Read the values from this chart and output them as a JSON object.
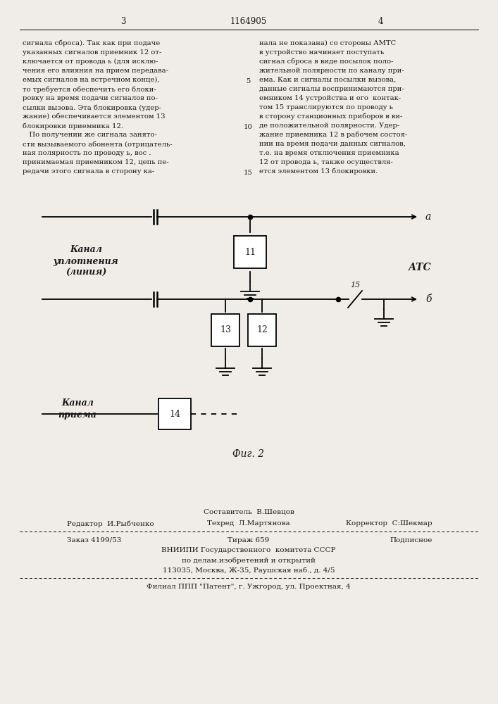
{
  "bg_color": "#f0ede8",
  "text_color": "#1a1a1a",
  "page_header": {
    "left_num": "3",
    "center_num": "1164905",
    "right_num": "4"
  },
  "col_left_text": [
    "сигнала сброса). Так как при подаче",
    "указанных сигналов приемник 12 от-",
    "ключается от провода ь (для исклю-",
    "чения его влияния на прием передава-",
    "емых сигналов на встречном конце),",
    "то требуется обеспечить его блоки-",
    "ровку на время подачи сигналов по-",
    "сылки вызова. Эта блокировка (удер-",
    "жание) обеспечивается элементом 13",
    "блокировки приемника 12.",
    "   По получении же сигнала занято-",
    "сти вызываемого абонента (отрицатель-",
    "ная полярность по проводу ь, вос .",
    "принимаемая приемником 12, цепь пе-",
    "редачи этого сигнала в сторону ка-"
  ],
  "col_right_text": [
    "нала не показана) со стороны АМТС",
    "в устройство начинает поступать",
    "сигнал сброса в виде посылок поло-",
    "жительной полярности по каналу при-",
    "ема. Как и сигналы посылки вызова,",
    "данные сигналы воспринимаются при-",
    "емником 14 устройства и его  контак-",
    "том 15 транслируются по проводу ь",
    "в сторону станционных приборов в ви-",
    "де положительной полярности. Удер-",
    "жание приемника 12 в рабочем состоя-",
    "нии на время подачи данных сигналов,",
    "т.е. на время отключения приемника",
    "12 от провода ь, также осуществля-",
    "ется элементом 13 блокировки."
  ],
  "footer": {
    "line1_left": "Составитель  В.Шевцов",
    "line2_left": "Редактор  И.Рыбченко",
    "line2_center": "Техред  Л.Мартянова",
    "line2_right": "Корректор  С:Шекмар",
    "line3_left": "Заказ 4199/53",
    "line3_center": "Тираж 659",
    "line3_right": "Подписное",
    "line4": "ВНИИПИ Государственного  комитета СССР",
    "line5": "по делам.изобретений и открытий",
    "line6": "113035, Москва, Ж-35, Раушская наб., д. 4/5",
    "line7": "Филиал ППП \"Патент\", г. Ужгород, ул. Проектная, 4"
  }
}
